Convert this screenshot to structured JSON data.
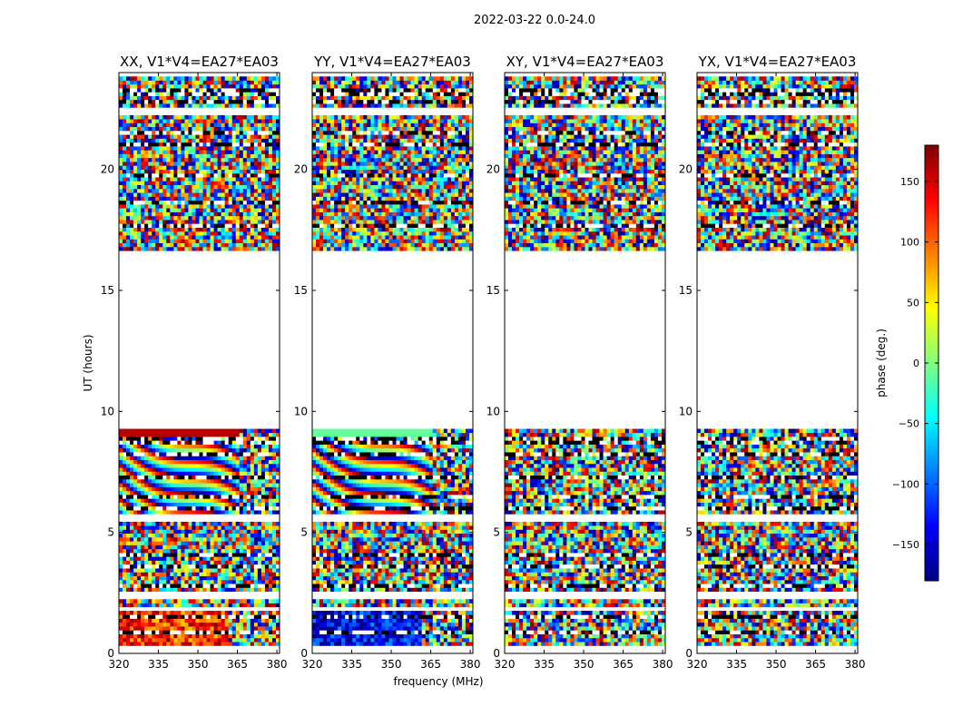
{
  "figure": {
    "suptitle": "2022-03-22 0.0-24.0"
  },
  "chart_data": {
    "type": "heatmap",
    "quantity": "phase",
    "panels": [
      {
        "title": "XX, V1*V4=EA27*EA03",
        "pol": "XX"
      },
      {
        "title": "YY, V1*V4=EA27*EA03",
        "pol": "YY"
      },
      {
        "title": "XY, V1*V4=EA27*EA03",
        "pol": "XY"
      },
      {
        "title": "YX, V1*V4=EA27*EA03",
        "pol": "YX"
      }
    ],
    "xlabel": "frequency (MHz)",
    "ylabel": "UT (hours)",
    "xlim": [
      320,
      381
    ],
    "ylim": [
      0,
      24
    ],
    "xticks": [
      "320",
      "335",
      "350",
      "365",
      "380"
    ],
    "yticks": [
      "0",
      "5",
      "10",
      "15",
      "20"
    ],
    "colorbar": {
      "label": "phase (deg.)",
      "range": [
        -180,
        180
      ],
      "ticks": [
        "150",
        "100",
        "50",
        "0",
        "−50",
        "−100",
        "−150"
      ],
      "colormap": "jet",
      "colors": [
        "#00007f",
        "#0000ff",
        "#007fff",
        "#00ffff",
        "#7fff7f",
        "#ffff00",
        "#ff7f00",
        "#ff0000",
        "#7f0000"
      ]
    },
    "data_gap_hours": [
      [
        0.0,
        0.25
      ],
      [
        1.75,
        2.0
      ],
      [
        2.3,
        2.5
      ],
      [
        5.4,
        5.7
      ],
      [
        9.35,
        16.7
      ],
      [
        22.3,
        22.6
      ],
      [
        23.8,
        24.0
      ]
    ],
    "flagged_rows_hours": [
      0.9,
      1.55,
      2.85,
      3.6,
      4.1,
      6.0,
      6.5,
      7.3,
      8.2,
      8.8,
      17.7,
      18.6,
      19.8,
      21.1,
      21.5,
      22.8,
      23.2
    ]
  }
}
